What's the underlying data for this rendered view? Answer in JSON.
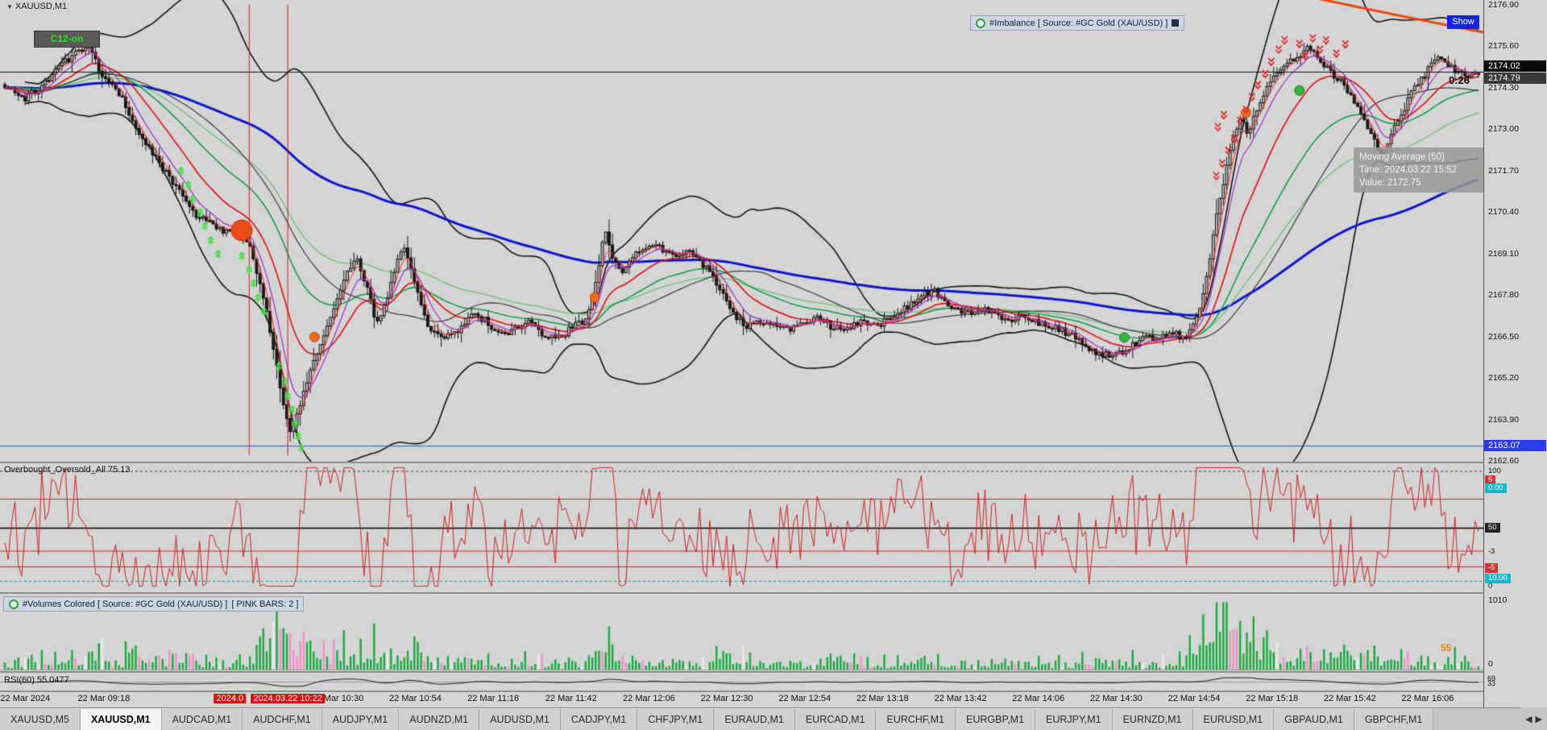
{
  "icons": {
    "dropdown": "▼",
    "scroll_left": "◀",
    "scroll_right": "▶"
  },
  "chart": {
    "symbol_label": "XAUUSD,M1",
    "c12_button": "C12-on",
    "imbalance_chip": "#Imbalance [ Source: #GC Gold (XAU/USD) ]",
    "show_button": "Show",
    "countdown": "0:26",
    "price_badges": {
      "upper": "2174.02",
      "lower": "2174.79"
    },
    "support_badge": "2163.07",
    "tooltip": {
      "title": "Moving Average (50)",
      "time": "Time: 2024.03.22 15:52",
      "value": "Value: 2172.75"
    },
    "y_axis": [
      "2176.90",
      "2175.60",
      "2174.30",
      "2173.00",
      "2171.70",
      "2170.40",
      "2169.10",
      "2167.80",
      "2166.50",
      "2165.20",
      "2163.90",
      "2162.60"
    ]
  },
  "chart_data": {
    "type": "candlestick",
    "symbol": "XAUUSD",
    "timeframe": "M1",
    "price_max": 2177.05,
    "price_min": 2162.58,
    "bars": 440,
    "seed": 7,
    "noise": 0.22,
    "current_price": 2174.79,
    "support_price": 2163.07,
    "price_anchors": [
      [
        0,
        2174.4
      ],
      [
        0.013,
        2173.9
      ],
      [
        0.03,
        2174.6
      ],
      [
        0.043,
        2175.2
      ],
      [
        0.056,
        2175.7
      ],
      [
        0.066,
        2174.6
      ],
      [
        0.076,
        2174.3
      ],
      [
        0.086,
        2173.3
      ],
      [
        0.1,
        2172.2
      ],
      [
        0.11,
        2171.6
      ],
      [
        0.12,
        2170.9
      ],
      [
        0.13,
        2170.3
      ],
      [
        0.14,
        2170.0
      ],
      [
        0.15,
        2169.8
      ],
      [
        0.159,
        2169.9
      ],
      [
        0.167,
        2169.3
      ],
      [
        0.174,
        2168.0
      ],
      [
        0.181,
        2166.5
      ],
      [
        0.187,
        2164.8
      ],
      [
        0.194,
        2163.4
      ],
      [
        0.199,
        2164.2
      ],
      [
        0.206,
        2165.3
      ],
      [
        0.214,
        2166.3
      ],
      [
        0.223,
        2167.3
      ],
      [
        0.233,
        2168.6
      ],
      [
        0.239,
        2169.0
      ],
      [
        0.246,
        2168.0
      ],
      [
        0.252,
        2166.9
      ],
      [
        0.259,
        2167.6
      ],
      [
        0.266,
        2168.9
      ],
      [
        0.271,
        2169.3
      ],
      [
        0.279,
        2168.0
      ],
      [
        0.287,
        2166.8
      ],
      [
        0.296,
        2166.4
      ],
      [
        0.306,
        2166.6
      ],
      [
        0.316,
        2167.2
      ],
      [
        0.326,
        2167.0
      ],
      [
        0.336,
        2166.6
      ],
      [
        0.346,
        2166.7
      ],
      [
        0.355,
        2167.0
      ],
      [
        0.365,
        2166.5
      ],
      [
        0.375,
        2166.4
      ],
      [
        0.385,
        2166.8
      ],
      [
        0.395,
        2167.0
      ],
      [
        0.402,
        2168.3
      ],
      [
        0.407,
        2169.9
      ],
      [
        0.412,
        2169.0
      ],
      [
        0.419,
        2168.6
      ],
      [
        0.425,
        2169.0
      ],
      [
        0.435,
        2169.2
      ],
      [
        0.442,
        2169.4
      ],
      [
        0.452,
        2169.0
      ],
      [
        0.462,
        2169.2
      ],
      [
        0.472,
        2168.9
      ],
      [
        0.482,
        2168.2
      ],
      [
        0.492,
        2167.4
      ],
      [
        0.502,
        2166.8
      ],
      [
        0.512,
        2167.0
      ],
      [
        0.522,
        2166.9
      ],
      [
        0.532,
        2166.7
      ],
      [
        0.542,
        2166.9
      ],
      [
        0.551,
        2167.1
      ],
      [
        0.561,
        2166.8
      ],
      [
        0.571,
        2166.7
      ],
      [
        0.581,
        2167.0
      ],
      [
        0.591,
        2166.8
      ],
      [
        0.601,
        2167.1
      ],
      [
        0.611,
        2167.4
      ],
      [
        0.621,
        2167.8
      ],
      [
        0.631,
        2167.9
      ],
      [
        0.641,
        2167.5
      ],
      [
        0.651,
        2167.2
      ],
      [
        0.661,
        2167.4
      ],
      [
        0.671,
        2167.3
      ],
      [
        0.681,
        2167.0
      ],
      [
        0.691,
        2167.2
      ],
      [
        0.701,
        2166.9
      ],
      [
        0.711,
        2166.8
      ],
      [
        0.721,
        2166.6
      ],
      [
        0.731,
        2166.3
      ],
      [
        0.741,
        2166.0
      ],
      [
        0.751,
        2165.9
      ],
      [
        0.761,
        2166.1
      ],
      [
        0.771,
        2166.4
      ],
      [
        0.781,
        2166.5
      ],
      [
        0.791,
        2166.6
      ],
      [
        0.801,
        2166.5
      ],
      [
        0.807,
        2166.9
      ],
      [
        0.812,
        2167.5
      ],
      [
        0.817,
        2168.8
      ],
      [
        0.822,
        2170.2
      ],
      [
        0.828,
        2171.6
      ],
      [
        0.833,
        2172.6
      ],
      [
        0.839,
        2173.4
      ],
      [
        0.844,
        2172.8
      ],
      [
        0.849,
        2173.6
      ],
      [
        0.856,
        2174.3
      ],
      [
        0.862,
        2174.8
      ],
      [
        0.87,
        2175.0
      ],
      [
        0.878,
        2175.3
      ],
      [
        0.887,
        2175.6
      ],
      [
        0.896,
        2175.0
      ],
      [
        0.904,
        2174.6
      ],
      [
        0.912,
        2174.2
      ],
      [
        0.92,
        2173.5
      ],
      [
        0.927,
        2172.8
      ],
      [
        0.934,
        2172.2
      ],
      [
        0.94,
        2172.8
      ],
      [
        0.947,
        2173.4
      ],
      [
        0.953,
        2174.0
      ],
      [
        0.962,
        2174.6
      ],
      [
        0.969,
        2175.1
      ],
      [
        0.975,
        2175.3
      ],
      [
        0.982,
        2174.9
      ],
      [
        0.99,
        2174.7
      ],
      [
        1,
        2174.8
      ]
    ],
    "vlines": [
      {
        "f": 0.168,
        "color": "#cc2222"
      },
      {
        "f": 0.194,
        "color": "#cc2222"
      }
    ],
    "orange_band": [
      [
        0.85,
        -0.03
      ],
      [
        0.92,
        0.02
      ],
      [
        1.0,
        0.07
      ]
    ],
    "markers": {
      "red_circle": {
        "f": [
          0.163,
          0.499
        ],
        "r": 13,
        "fill": "#ea4b17",
        "stroke": "#b83a0c"
      },
      "orange_dots": [
        [
          0.212,
          0.73
        ],
        [
          0.401,
          0.644
        ],
        [
          0.84,
          0.244
        ]
      ],
      "green_dots": [
        [
          0.758,
          0.731
        ],
        [
          0.876,
          0.196
        ]
      ],
      "lime_arrows": [
        [
          0.122,
          0.368
        ],
        [
          0.127,
          0.398
        ],
        [
          0.13,
          0.428
        ],
        [
          0.135,
          0.457
        ],
        [
          0.138,
          0.487
        ],
        [
          0.142,
          0.518
        ],
        [
          0.147,
          0.548
        ],
        [
          0.163,
          0.552
        ],
        [
          0.168,
          0.581
        ],
        [
          0.171,
          0.611
        ],
        [
          0.174,
          0.642
        ],
        [
          0.178,
          0.672
        ],
        [
          0.188,
          0.791
        ],
        [
          0.192,
          0.824
        ],
        [
          0.194,
          0.855
        ],
        [
          0.197,
          0.885
        ],
        [
          0.199,
          0.915
        ],
        [
          0.201,
          0.942
        ],
        [
          0.203,
          0.967
        ]
      ],
      "red_arrows": [
        [
          0.82,
          0.38
        ],
        [
          0.824,
          0.353
        ],
        [
          0.828,
          0.325
        ],
        [
          0.832,
          0.3
        ],
        [
          0.821,
          0.274
        ],
        [
          0.825,
          0.248
        ],
        [
          0.836,
          0.26
        ],
        [
          0.84,
          0.236
        ],
        [
          0.844,
          0.209
        ],
        [
          0.848,
          0.183
        ],
        [
          0.853,
          0.159
        ],
        [
          0.857,
          0.133
        ],
        [
          0.862,
          0.106
        ],
        [
          0.866,
          0.086
        ],
        [
          0.876,
          0.094
        ],
        [
          0.88,
          0.12
        ],
        [
          0.885,
          0.082
        ],
        [
          0.89,
          0.106
        ],
        [
          0.894,
          0.086
        ],
        [
          0.901,
          0.115
        ],
        [
          0.907,
          0.095
        ]
      ]
    },
    "indicators": {
      "blue": {
        "span": 170,
        "color": "#0b16cf",
        "width": 3
      },
      "ma50": {
        "span": 50,
        "color": "#3c3c3c",
        "width": 1.2
      },
      "red": {
        "span": 20,
        "color": "#e01818",
        "width": 1.7
      },
      "green1": {
        "span": 42,
        "color": "#0c9c44",
        "width": 1.5
      },
      "green2": {
        "span": 70,
        "color": "#74c47c",
        "width": 1.5
      },
      "fast1": {
        "span": 4,
        "color": "#ff2828",
        "width": 1
      },
      "fast2": {
        "span": 8,
        "color": "#9a2fd2",
        "width": 1.2
      },
      "boll": {
        "window": 45,
        "mult": 2.3,
        "color": "#161616",
        "width": 1.6
      }
    }
  },
  "oscillator": {
    "label": "Overbought_Oversold_All 75.13",
    "color": "#cc2222",
    "seed": 12,
    "levels": [
      {
        "v": 96,
        "color": "#333333",
        "dash": true
      },
      {
        "v": 73,
        "color": "#cc2222",
        "dash": false
      },
      {
        "v": 49,
        "color": "#000000",
        "dash": false
      },
      {
        "v": 30,
        "color": "#cc2222",
        "dash": false
      },
      {
        "v": 17,
        "color": "#cc2222",
        "dash": false
      },
      {
        "v": 5,
        "color": "#0a9a9a",
        "dash": true
      }
    ],
    "axis": [
      {
        "text": "100",
        "f": 0.03
      },
      {
        "text": "5",
        "f": 0.1,
        "bg": "#e03131"
      },
      {
        "text": "0.00",
        "f": 0.17,
        "bg": "#18b7c9"
      },
      {
        "text": "50",
        "f": 0.5,
        "bg": "#222222"
      },
      {
        "text": "-3",
        "f": 0.7
      },
      {
        "text": "-5",
        "f": 0.835,
        "bg": "#e03131"
      },
      {
        "text": "10.00",
        "f": 0.925,
        "bg": "#18b7c9"
      },
      {
        "text": "0",
        "f": 0.99
      }
    ]
  },
  "volumes": {
    "label": "#Volumes Colored [ Source: #GC Gold (XAU/USD) ]",
    "label2": "[ PINK BARS: 2 ]",
    "axis_max": "1010",
    "axis_min": "0",
    "value_label": "55",
    "seed": 5,
    "colors": {
      "green": "#18aa3c",
      "pink": "#f08fc8",
      "white": "#ececec"
    }
  },
  "rsi": {
    "label": "RSI(60) 55.0477",
    "seed": 9,
    "axis": [
      {
        "text": "69",
        "f": 0.08
      },
      {
        "text": "33",
        "f": 0.55
      }
    ]
  },
  "time_axis": {
    "labels": [
      {
        "text": "22 Mar 2024",
        "f": 0.017
      },
      {
        "text": "22 Mar 09:18",
        "f": 0.07
      },
      {
        "text": "2024.0",
        "f": 0.155,
        "red": true
      },
      {
        "text": "2024.03.22 10:22",
        "f": 0.194,
        "red": true
      },
      {
        "text": "22 Mar 10:30",
        "f": 0.2275
      },
      {
        "text": "22 Mar 10:54",
        "f": 0.28
      },
      {
        "text": "22 Mar 11:18",
        "f": 0.3325
      },
      {
        "text": "22 Mar 11:42",
        "f": 0.385
      },
      {
        "text": "22 Mar 12:06",
        "f": 0.4375
      },
      {
        "text": "22 Mar 12:30",
        "f": 0.49
      },
      {
        "text": "22 Mar 12:54",
        "f": 0.5425
      },
      {
        "text": "22 Mar 13:18",
        "f": 0.595
      },
      {
        "text": "22 Mar 13:42",
        "f": 0.6475
      },
      {
        "text": "22 Mar 14:06",
        "f": 0.7
      },
      {
        "text": "22 Mar 14:30",
        "f": 0.7525
      },
      {
        "text": "22 Mar 14:54",
        "f": 0.805
      },
      {
        "text": "22 Mar 15:18",
        "f": 0.8575
      },
      {
        "text": "22 Mar 15:42",
        "f": 0.91
      },
      {
        "text": "22 Mar 16:06",
        "f": 0.9625
      }
    ]
  },
  "tabs": {
    "items": [
      "XAUUSD,M5",
      "XAUUSD,M1",
      "AUDCAD,M1",
      "AUDCHF,M1",
      "AUDJPY,M1",
      "AUDNZD,M1",
      "AUDUSD,M1",
      "CADJPY,M1",
      "CHFJPY,M1",
      "EURAUD,M1",
      "EURCAD,M1",
      "EURCHF,M1",
      "EURGBP,M1",
      "EURJPY,M1",
      "EURNZD,M1",
      "EURUSD,M1",
      "GBPAUD,M1",
      "GBPCHF,M1"
    ],
    "active_index": 1
  }
}
